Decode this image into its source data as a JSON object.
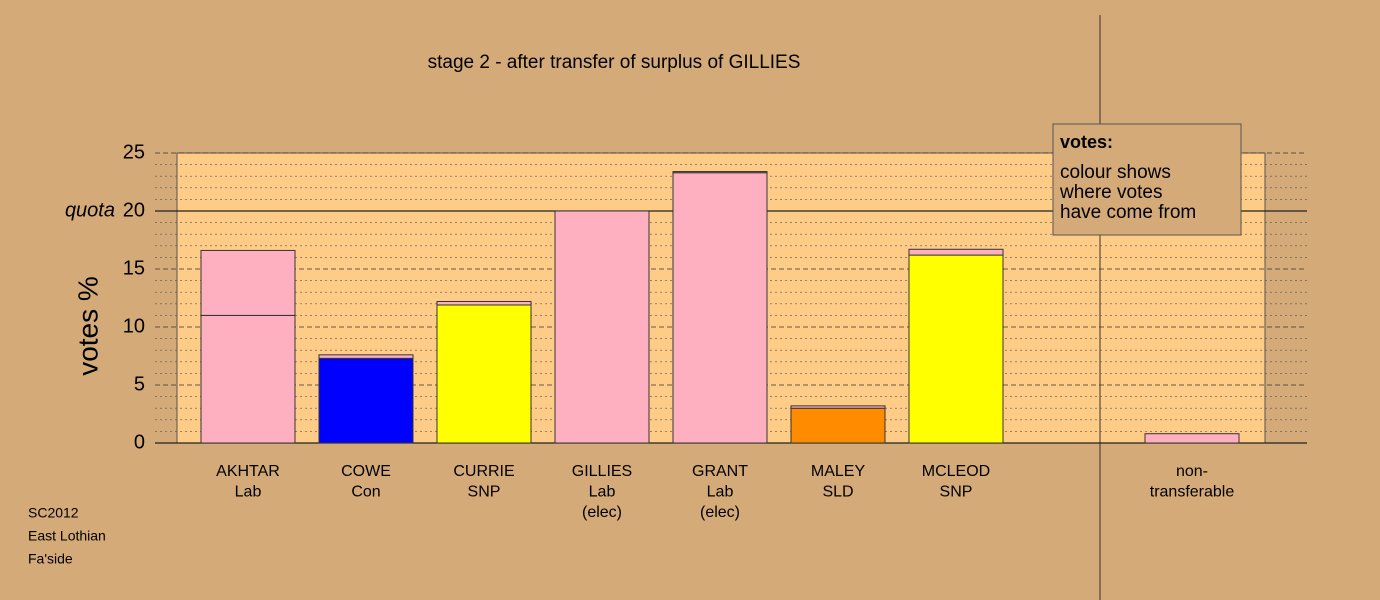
{
  "chart_data": {
    "type": "bar",
    "stacked": true,
    "title": "stage 2 - after transfer of surplus of GILLIES",
    "y_label": "votes %",
    "categories": [
      [
        "AKHTAR",
        "Lab"
      ],
      [
        "COWE",
        "Con"
      ],
      [
        "CURRIE",
        "SNP"
      ],
      [
        "GILLIES",
        "Lab",
        "(elec)"
      ],
      [
        "GRANT",
        "Lab",
        "(elec)"
      ],
      [
        "MALEY",
        "SLD"
      ],
      [
        "MCLEOD",
        "SNP"
      ],
      null,
      [
        "non-",
        "transferable"
      ]
    ],
    "series": [
      {
        "colors": [
          "#ffb0c0",
          "#0000ff",
          "#ffff00",
          "#ffb0c0",
          "#ffb0c0",
          "#ff8c00",
          "#ffff00",
          null,
          "#ffb0c0"
        ],
        "values": [
          11.0,
          7.3,
          11.9,
          20.0,
          23.3,
          3.0,
          16.2,
          null,
          0.8
        ]
      },
      {
        "color": "#ffb0c0",
        "values": [
          5.6,
          0.3,
          0.3,
          null,
          0.1,
          0.2,
          0.5,
          null,
          null
        ]
      }
    ],
    "ylim": [
      0,
      25
    ],
    "yticks": [
      0,
      5,
      10,
      15,
      20,
      25
    ],
    "grid": true,
    "quota": {
      "label": "quota",
      "value": 20
    },
    "note": {
      "title": "votes:",
      "lines": [
        "colour shows",
        "where votes",
        "have come from"
      ]
    },
    "footer": [
      "SC2012",
      "East Lothian",
      "Fa'side"
    ]
  }
}
